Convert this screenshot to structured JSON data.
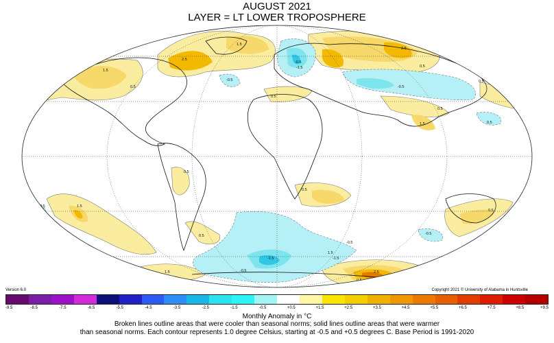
{
  "header": {
    "title_line1": "AUGUST 2021",
    "title_line2": "LAYER = LT LOWER TROPOSPHERE"
  },
  "map": {
    "projection": "Mollweide",
    "contour_labels": [
      "1.5",
      "0.5",
      "1.5",
      "2.5",
      "1.5",
      "0.5",
      "2.5",
      "0.5",
      "0.5",
      "0.5",
      "-0.5",
      "-1.5",
      "-0.5",
      "-0.5",
      "0.5",
      "1.5",
      "0.5",
      "0.5",
      "0.5",
      "0.5",
      "1.5",
      "-0.5",
      "0.5",
      "0.5",
      "0.5",
      "-0.5",
      "1.5",
      "-1.5",
      "-1.5",
      "-0.5",
      "2.5",
      "0.5",
      "1.5",
      "0.5",
      "-0.5"
    ],
    "anomaly_colors": {
      "warm_light": "#fbeda0",
      "warm_mid": "#f7d86a",
      "warm_strong": "#f3b900",
      "warm_hot": "#e57900",
      "cool_light": "#b4f0f5",
      "cool_mid": "#7ee4ee",
      "cool_strong": "#33c7e6"
    }
  },
  "footer": {
    "version": "Version 6.0",
    "copyright": "Copyright 2021 © University of Alabama in Huntsville",
    "colorbar_colors": [
      "#670b6f",
      "#7a1fa5",
      "#9b12c8",
      "#d22bd8",
      "#0f0f7a",
      "#2020c4",
      "#2c5cf4",
      "#2f8ef6",
      "#1ab8e8",
      "#2ce2ef",
      "#2ef5f5",
      "#a4f4f5",
      "#ffffff",
      "#fff7a6",
      "#f7e500",
      "#f4cd00",
      "#f0b000",
      "#ee9700",
      "#ea7a00",
      "#e66000",
      "#e23d00",
      "#dd1d00",
      "#cc0000",
      "#b20000"
    ],
    "colorbar_ticks": [
      "-9.5",
      "-8.5",
      "-7.5",
      "-6.5",
      "-5.5",
      "-4.5",
      "-3.5",
      "-2.5",
      "-1.5",
      "-0.5",
      "+0.5",
      "+1.5",
      "+2.5",
      "+3.5",
      "+4.5",
      "+5.5",
      "+6.5",
      "+7.5",
      "+8.5",
      "+9.5"
    ],
    "unit_label": "Monthly Anomaly in °C",
    "note_line1": "Broken lines outline areas that were cooler than seasonal norms; solid lines outline areas that were warmer",
    "note_line2": "than seasonal norms. Each contour represents 1.0 degree Celsius, starting at -0.5 and +0.5 degrees C. Base Period is 1991-2020"
  }
}
